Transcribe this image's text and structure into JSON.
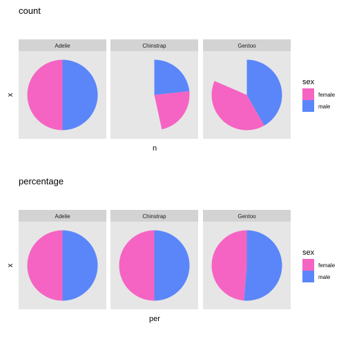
{
  "chart_data": [
    {
      "type": "pie",
      "title": "count",
      "xlabel": "n",
      "ylabel": "x",
      "facets": [
        "Adelie",
        "Chinstrap",
        "Gentoo"
      ],
      "slice_order": [
        "male",
        "female"
      ],
      "values": {
        "Adelie": {
          "female": 73,
          "male": 73
        },
        "Chinstrap": {
          "female": 34,
          "male": 34
        },
        "Gentoo": {
          "female": 58,
          "male": 61
        }
      },
      "scale": "shared",
      "max_total": 146,
      "legend": {
        "title": "sex",
        "position": "right",
        "entries": [
          "female",
          "male"
        ]
      },
      "grid": false
    },
    {
      "type": "pie",
      "title": "percentage",
      "xlabel": "per",
      "ylabel": "x",
      "facets": [
        "Adelie",
        "Chinstrap",
        "Gentoo"
      ],
      "slice_order": [
        "male",
        "female"
      ],
      "values": {
        "Adelie": {
          "female": 0.5,
          "male": 0.5
        },
        "Chinstrap": {
          "female": 0.5,
          "male": 0.5
        },
        "Gentoo": {
          "female": 0.487,
          "male": 0.513
        }
      },
      "scale": "shared",
      "max_total": 1,
      "legend": {
        "title": "sex",
        "position": "right",
        "entries": [
          "female",
          "male"
        ]
      },
      "grid": false
    }
  ],
  "colors": {
    "female": "#F564C3",
    "male": "#5A86FA",
    "panel_bg": "#E6E6E6",
    "strip_bg": "#D3D3D3",
    "text": "#000000",
    "strip_text": "#1A1A1A"
  }
}
